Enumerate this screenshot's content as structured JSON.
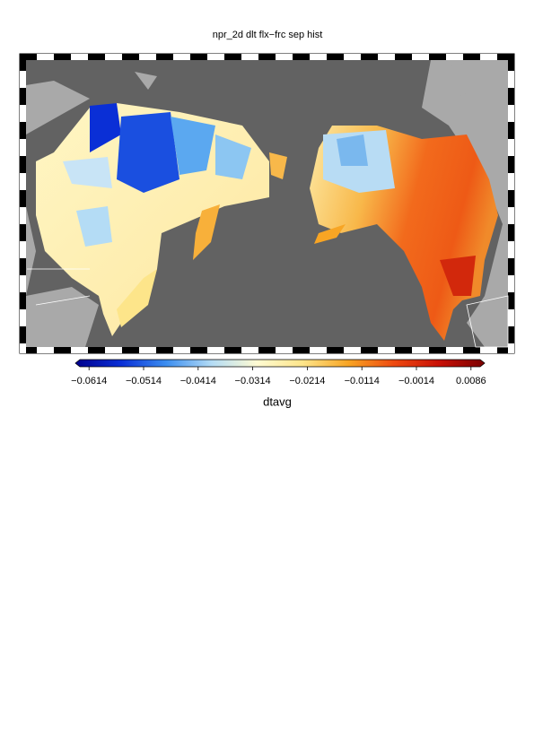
{
  "title": "npr_2d dlt flx−frc sep hist",
  "colorbar": {
    "label": "dtavg",
    "lim": [
      -0.0639,
      0.0111
    ],
    "colormap": [
      "#00008c",
      "#0a2fd6",
      "#3c8ef0",
      "#b4dcf5",
      "#fffbd2",
      "#fde58a",
      "#f8a524",
      "#ee4a10",
      "#c81006",
      "#7a0000"
    ],
    "ticks": [
      {
        "value": -0.0614,
        "label": "−0.0614"
      },
      {
        "value": -0.0514,
        "label": "−0.0514"
      },
      {
        "value": -0.0414,
        "label": "−0.0414"
      },
      {
        "value": -0.0314,
        "label": "−0.0314"
      },
      {
        "value": -0.0214,
        "label": "−0.0214"
      },
      {
        "value": -0.0114,
        "label": "−0.0114"
      },
      {
        "value": -0.0014,
        "label": "−0.0014"
      },
      0.0086
    ]
  }
}
